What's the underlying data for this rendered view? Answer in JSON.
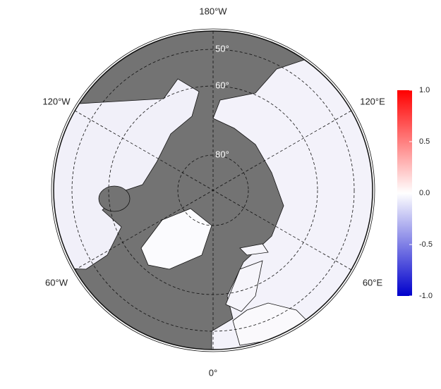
{
  "map": {
    "lon_labels": [
      "180°W",
      "120°E",
      "60°E",
      "0°",
      "60°W",
      "120°W"
    ],
    "lat_labels": [
      "50°",
      "60°",
      "80°"
    ],
    "colorbar": {
      "lim": [
        -1,
        1
      ],
      "ticks": [
        {
          "value": 1,
          "label": "1.0"
        },
        {
          "value": 0.5,
          "label": "0.5"
        },
        {
          "value": 0,
          "label": "0.0"
        },
        {
          "value": -0.5,
          "label": "-0.5"
        },
        {
          "value": -1,
          "label": "-1.0"
        }
      ],
      "colors": [
        "#0000cc",
        "#ffffff",
        "#ff0000"
      ]
    }
  }
}
